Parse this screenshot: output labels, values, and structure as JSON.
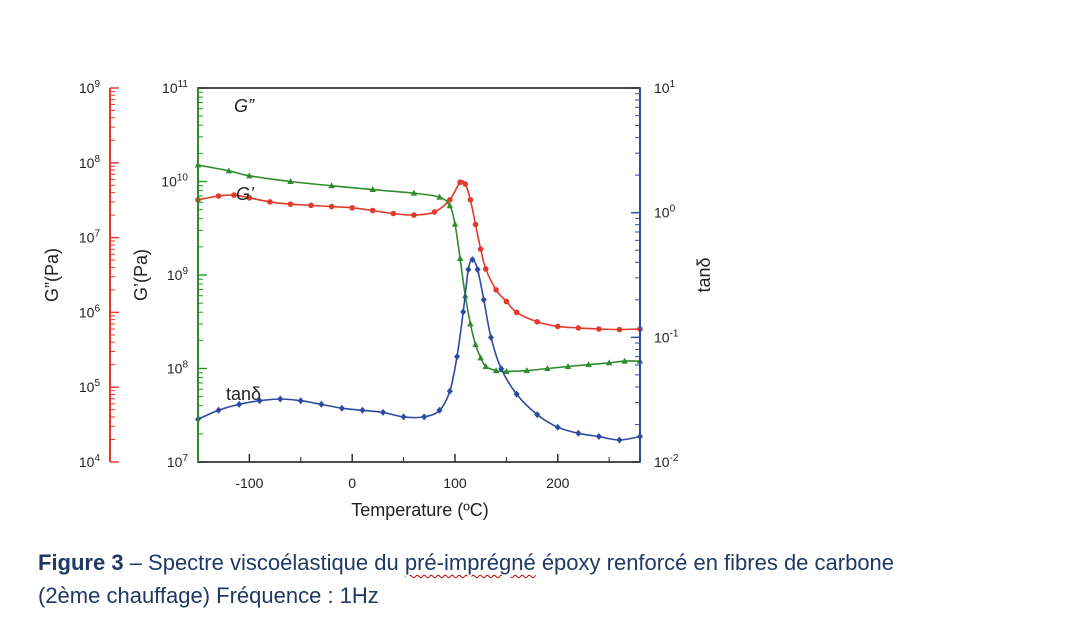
{
  "chart_data": {
    "type": "line",
    "xlabel": "Temperature (ºC)",
    "x_ticks": [
      "-100",
      "0",
      "100",
      "200"
    ],
    "xlim": [
      -150,
      280
    ],
    "axes": {
      "left_outer": {
        "label": "G”(Pa)",
        "scale": "log",
        "range": [
          10000,
          1000000000
        ],
        "tick_labels": [
          "10^4",
          "10^5",
          "10^6",
          "10^7",
          "10^8",
          "10^9"
        ],
        "color": "#e23a2b"
      },
      "left_inner": {
        "label": "G’(Pa)",
        "scale": "log",
        "range": [
          10000000,
          100000000000
        ],
        "tick_labels": [
          "10^7",
          "10^8",
          "10^9",
          "10^10",
          "10^11"
        ],
        "color": "#2e8b2e"
      },
      "right": {
        "label": "tanδ",
        "scale": "log",
        "range": [
          0.01,
          10
        ],
        "tick_labels": [
          "10^-2",
          "10^-1",
          "10^0",
          "10^1"
        ],
        "color": "#2c4aa0"
      }
    },
    "series": [
      {
        "name": "G”",
        "axis": "left_outer",
        "color": "#e23a2b",
        "marker": "circle",
        "points": [
          [
            -150,
            32000000.0
          ],
          [
            -130,
            36000000.0
          ],
          [
            -115,
            37000000.0
          ],
          [
            -100,
            34000000.0
          ],
          [
            -80,
            30000000.0
          ],
          [
            -60,
            28000000.0
          ],
          [
            -40,
            27000000.0
          ],
          [
            -20,
            26000000.0
          ],
          [
            0,
            25000000.0
          ],
          [
            20,
            23000000.0
          ],
          [
            40,
            21000000.0
          ],
          [
            60,
            20000000.0
          ],
          [
            80,
            22000000.0
          ],
          [
            95,
            32000000.0
          ],
          [
            105,
            55000000.0
          ],
          [
            110,
            52000000.0
          ],
          [
            115,
            32000000.0
          ],
          [
            120,
            15000000.0
          ],
          [
            125,
            7000000.0
          ],
          [
            130,
            3800000.0
          ],
          [
            140,
            2000000.0
          ],
          [
            150,
            1400000.0
          ],
          [
            160,
            1000000.0
          ],
          [
            180,
            750000.0
          ],
          [
            200,
            650000.0
          ],
          [
            220,
            620000.0
          ],
          [
            240,
            600000.0
          ],
          [
            260,
            590000.0
          ],
          [
            280,
            600000.0
          ]
        ]
      },
      {
        "name": "G’",
        "axis": "left_inner",
        "color": "#2e8b2e",
        "marker": "triangle",
        "points": [
          [
            -150,
            15000000000.0
          ],
          [
            -120,
            13000000000.0
          ],
          [
            -100,
            11500000000.0
          ],
          [
            -60,
            10000000000.0
          ],
          [
            -20,
            9000000000.0
          ],
          [
            20,
            8200000000.0
          ],
          [
            60,
            7500000000.0
          ],
          [
            85,
            6800000000.0
          ],
          [
            95,
            5500000000.0
          ],
          [
            100,
            3500000000.0
          ],
          [
            105,
            1500000000.0
          ],
          [
            110,
            600000000.0
          ],
          [
            115,
            300000000.0
          ],
          [
            120,
            180000000.0
          ],
          [
            125,
            130000000.0
          ],
          [
            130,
            105000000.0
          ],
          [
            140,
            95000000.0
          ],
          [
            150,
            93000000.0
          ],
          [
            170,
            95000000.0
          ],
          [
            190,
            100000000.0
          ],
          [
            210,
            105000000.0
          ],
          [
            230,
            110000000.0
          ],
          [
            250,
            115000000.0
          ],
          [
            265,
            120000000.0
          ],
          [
            280,
            120000000.0
          ]
        ]
      },
      {
        "name": "tanδ",
        "axis": "right",
        "color": "#2c4aa0",
        "marker": "diamond",
        "points": [
          [
            -150,
            0.022
          ],
          [
            -130,
            0.026
          ],
          [
            -110,
            0.029
          ],
          [
            -90,
            0.031
          ],
          [
            -70,
            0.032
          ],
          [
            -50,
            0.031
          ],
          [
            -30,
            0.029
          ],
          [
            -10,
            0.027
          ],
          [
            10,
            0.026
          ],
          [
            30,
            0.025
          ],
          [
            50,
            0.023
          ],
          [
            70,
            0.023
          ],
          [
            85,
            0.026
          ],
          [
            95,
            0.037
          ],
          [
            102,
            0.07
          ],
          [
            108,
            0.16
          ],
          [
            113,
            0.35
          ],
          [
            117,
            0.42
          ],
          [
            122,
            0.35
          ],
          [
            128,
            0.2
          ],
          [
            135,
            0.1
          ],
          [
            145,
            0.056
          ],
          [
            160,
            0.035
          ],
          [
            180,
            0.024
          ],
          [
            200,
            0.019
          ],
          [
            220,
            0.017
          ],
          [
            240,
            0.016
          ],
          [
            260,
            0.015
          ],
          [
            280,
            0.016
          ]
        ]
      }
    ],
    "annotations": [
      {
        "text": "G”",
        "series": "G”"
      },
      {
        "text": "G’",
        "series": "G’"
      },
      {
        "text": "tanδ",
        "series": "tanδ"
      }
    ]
  },
  "caption": {
    "figure_label": "Figure 3",
    "dash": " – Spectre viscoélastique du ",
    "underlined": "pré-imprégné",
    "rest_line1": " époxy renforcé en fibres de carbone",
    "line2": "(2ème chauffage) Fréquence : 1Hz"
  }
}
